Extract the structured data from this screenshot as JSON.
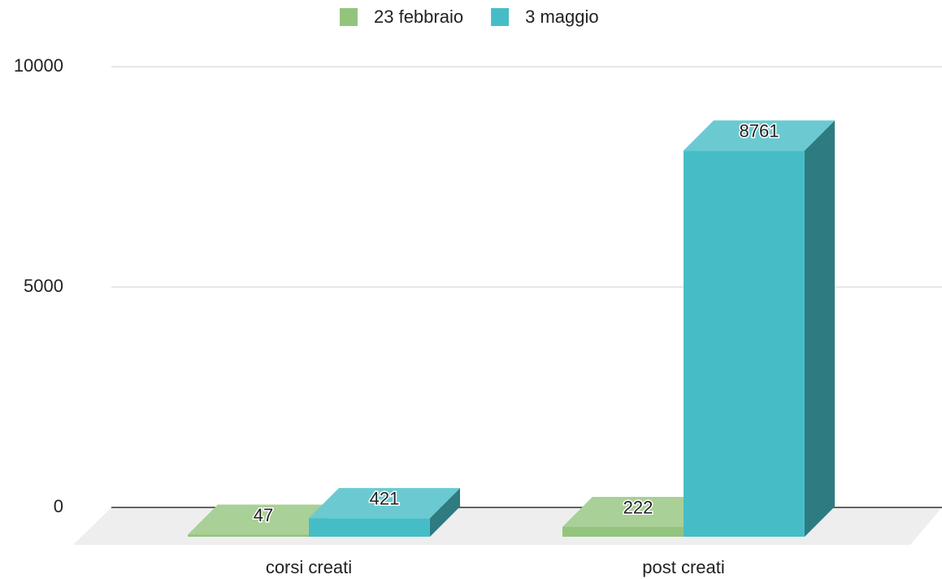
{
  "chart_data": {
    "type": "bar3d",
    "categories": [
      "corsi creati",
      "post creati"
    ],
    "series": [
      {
        "name": "23 febbraio",
        "color": "#93c47d",
        "values": [
          47,
          222
        ]
      },
      {
        "name": "3 maggio",
        "color": "#46bdc6",
        "values": [
          421,
          8761
        ]
      }
    ],
    "ylim": [
      0,
      10000
    ],
    "yticks": [
      0,
      5000,
      10000
    ],
    "grid": true,
    "legend": "top"
  }
}
